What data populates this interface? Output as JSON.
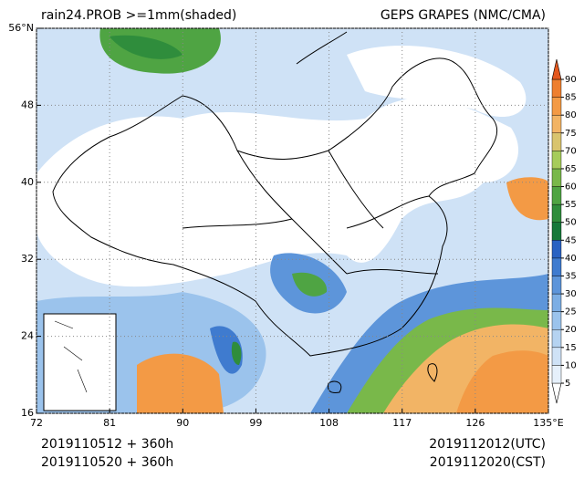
{
  "header": {
    "left": "rain24.PROB >=1mm(shaded)",
    "right": "GEPS GRAPES (NMC/CMA)"
  },
  "map": {
    "xlim": [
      72,
      135
    ],
    "ylim": [
      16,
      56
    ],
    "lonticks": [
      {
        "value": 72,
        "label": "72"
      },
      81,
      90,
      99,
      108,
      117,
      126,
      {
        "value": 135,
        "label": "135°E"
      }
    ],
    "latticks": [
      16,
      24,
      32,
      40,
      48,
      {
        "value": 56,
        "label": "56°N"
      }
    ],
    "grid": true
  },
  "colorbar": {
    "levels": [
      5,
      10,
      15,
      20,
      25,
      30,
      35,
      40,
      45,
      50,
      55,
      60,
      65,
      70,
      75,
      80,
      85,
      90
    ],
    "colors": [
      "#ffffff",
      "#e6f0fb",
      "#cfe2f6",
      "#b5d3f1",
      "#9bc3ec",
      "#7caee4",
      "#5d95da",
      "#3f7bcf",
      "#2a62c2",
      "#17783a",
      "#2f8d3c",
      "#4fa443",
      "#79b84a",
      "#a6cc5a",
      "#d9c46e",
      "#f2b465",
      "#f39a45",
      "#ee7f2f",
      "#e4581f"
    ]
  },
  "footer": {
    "init_utc": "2019110512 + 360h",
    "init_cst": "2019110520 + 360h",
    "valid_utc": "2019112012(UTC)",
    "valid_cst": "2019112020(CST)"
  }
}
